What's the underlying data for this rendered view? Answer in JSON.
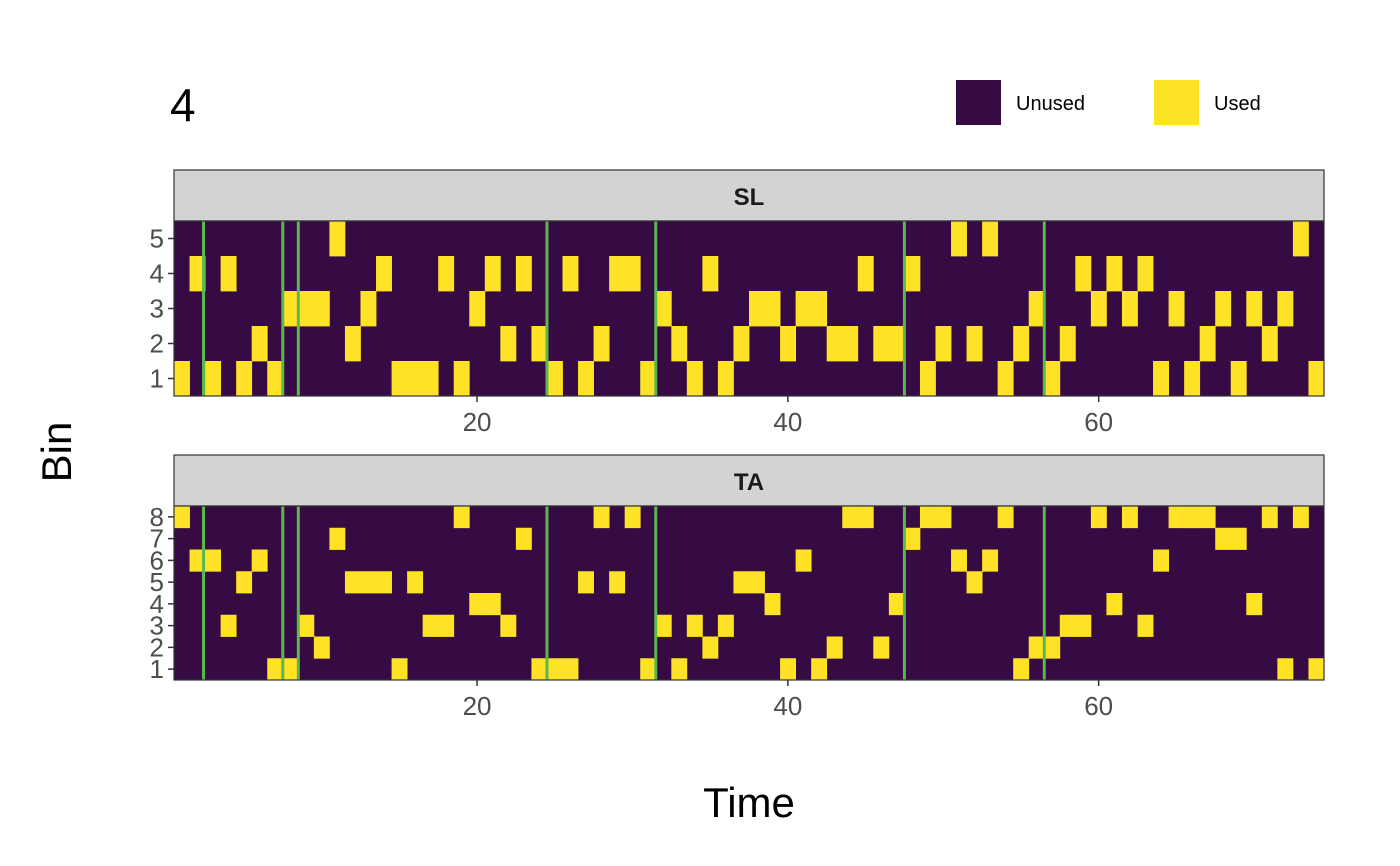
{
  "chart_data": {
    "type": "heatmap",
    "title": "4",
    "xlabel": "Time",
    "ylabel": "Bin",
    "xlim": [
      0.5,
      74.5
    ],
    "x_ticks": [
      20,
      40,
      60
    ],
    "x_tick_labels": [
      "20",
      "40",
      "60"
    ],
    "legend": {
      "position": "top-right",
      "entries": [
        {
          "label": "Unused",
          "color": "#360b44"
        },
        {
          "label": "Used",
          "color": "#fde225"
        }
      ]
    },
    "colors": {
      "unused": "#360b44",
      "used": "#fde225",
      "event_line": "#5ab84c",
      "strip_bg": "#d3d3d3",
      "panel_border": "#333333"
    },
    "event_lines_x": [
      2.4,
      7.5,
      8.5,
      24.5,
      31.5,
      47.5,
      56.5
    ],
    "time_range": [
      1,
      74
    ],
    "panels": [
      {
        "name": "SL",
        "bins": [
          1,
          2,
          3,
          4,
          5
        ],
        "y_tick_labels": [
          "1",
          "2",
          "3",
          "4",
          "5"
        ],
        "used": {
          "1": [
            1,
            3,
            5,
            7,
            15,
            16,
            17,
            19,
            25,
            27,
            31,
            34,
            36,
            49,
            54,
            57,
            64,
            66,
            69,
            74
          ],
          "2": [
            6,
            12,
            22,
            24,
            28,
            33,
            37,
            40,
            43,
            44,
            46,
            47,
            50,
            52,
            55,
            58,
            67,
            71
          ],
          "3": [
            8,
            9,
            10,
            13,
            20,
            32,
            38,
            39,
            41,
            42,
            56,
            60,
            62,
            65,
            68,
            70,
            72
          ],
          "4": [
            2,
            4,
            14,
            18,
            21,
            23,
            26,
            29,
            30,
            35,
            45,
            48,
            59,
            61,
            63
          ],
          "5": [
            11,
            51,
            53,
            73
          ]
        }
      },
      {
        "name": "TA",
        "bins": [
          1,
          2,
          3,
          4,
          5,
          6,
          7,
          8
        ],
        "y_tick_labels": [
          "1",
          "2",
          "3",
          "4",
          "5",
          "6",
          "7",
          "8"
        ],
        "used": {
          "1": [
            7,
            8,
            15,
            24,
            25,
            26,
            31,
            33,
            40,
            42,
            55,
            72,
            74
          ],
          "2": [
            10,
            35,
            43,
            46,
            56,
            57
          ],
          "3": [
            4,
            9,
            17,
            18,
            22,
            32,
            34,
            36,
            58,
            59,
            63
          ],
          "4": [
            20,
            21,
            39,
            47,
            61,
            70
          ],
          "5": [
            5,
            12,
            13,
            14,
            16,
            27,
            29,
            37,
            38,
            52
          ],
          "6": [
            2,
            3,
            6,
            41,
            51,
            53,
            64
          ],
          "7": [
            11,
            23,
            48,
            68,
            69
          ],
          "8": [
            1,
            19,
            28,
            30,
            44,
            45,
            49,
            50,
            54,
            60,
            62,
            65,
            66,
            67,
            71,
            73
          ]
        }
      }
    ]
  }
}
